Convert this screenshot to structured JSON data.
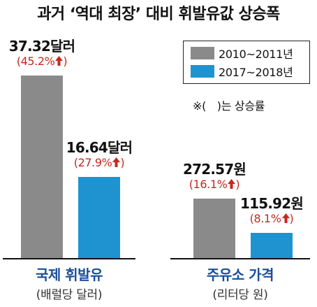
{
  "title": "과거 ‘역대 최장’ 대비 휘발유값 상승폭",
  "legend": {
    "items": [
      {
        "label": "2010~2011년",
        "color": "#8a8a8a"
      },
      {
        "label": "2017~2018년",
        "color": "#1f93cf"
      }
    ]
  },
  "note": "※(　)는 상승률",
  "arrow_color": "#c7281f",
  "chart_data": [
    {
      "type": "bar",
      "category": "국제 휘발유",
      "unit": "(배럴당 달러)",
      "series": [
        {
          "name": "2010~2011년",
          "value": 37.32,
          "value_label": "37.32달러",
          "change_label": "(45.2%"
        },
        {
          "name": "2017~2018년",
          "value": 16.64,
          "value_label": "16.64달러",
          "change_label": "(27.9%"
        }
      ],
      "ylim": [
        0,
        42
      ]
    },
    {
      "type": "bar",
      "category": "주유소 가격",
      "unit": "(리터당 원)",
      "series": [
        {
          "name": "2010~2011년",
          "value": 272.57,
          "value_label": "272.57원",
          "change_label": "(16.1%"
        },
        {
          "name": "2017~2018년",
          "value": 115.92,
          "value_label": "115.92원",
          "change_label": "(8.1%"
        }
      ],
      "ylim": [
        0,
        334
      ]
    }
  ]
}
